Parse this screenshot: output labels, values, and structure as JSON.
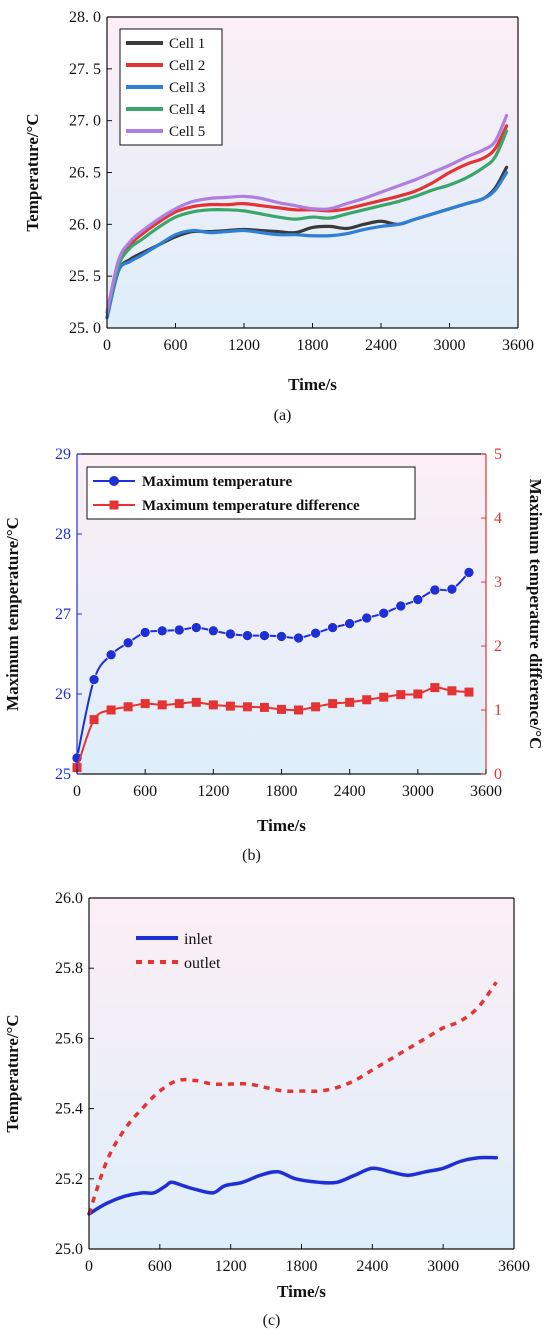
{
  "chart_data": [
    {
      "type": "line",
      "panel_label": "(a)",
      "xlabel": "Time/s",
      "ylabel": "Temperature/°C",
      "xlim": [
        0,
        3600
      ],
      "ylim": [
        25.0,
        28.0
      ],
      "x_ticks": [
        0,
        600,
        1200,
        1800,
        2400,
        3000,
        3600
      ],
      "x_tick_labels": [
        "0",
        "600",
        "1200",
        "1800",
        "2400",
        "3000",
        "3600"
      ],
      "y_ticks": [
        25.0,
        25.5,
        26.0,
        26.5,
        27.0,
        27.5,
        28.0
      ],
      "y_tick_labels": [
        "25. 0",
        "25. 5",
        "26. 0",
        "26. 5",
        "27. 0",
        "27. 5",
        "28. 0"
      ],
      "legend_position": "top-left",
      "background": {
        "top": "#fdeef5",
        "bottom": "#ddeefa"
      },
      "x": [
        0,
        100,
        200,
        300,
        450,
        600,
        750,
        900,
        1050,
        1200,
        1350,
        1500,
        1650,
        1800,
        1950,
        2100,
        2250,
        2400,
        2550,
        2700,
        2850,
        3000,
        3150,
        3300,
        3400,
        3500
      ],
      "series": [
        {
          "name": "Cell 1",
          "color": "#3a3a3a",
          "values": [
            25.1,
            25.55,
            25.66,
            25.72,
            25.8,
            25.88,
            25.93,
            25.93,
            25.94,
            25.95,
            25.94,
            25.93,
            25.92,
            25.97,
            25.98,
            25.96,
            26.0,
            26.03,
            26.0,
            26.05,
            26.1,
            26.15,
            26.2,
            26.25,
            26.35,
            26.55
          ]
        },
        {
          "name": "Cell 2",
          "color": "#e53333",
          "values": [
            25.15,
            25.62,
            25.8,
            25.9,
            26.02,
            26.12,
            26.17,
            26.19,
            26.19,
            26.2,
            26.18,
            26.16,
            26.14,
            26.14,
            26.13,
            26.15,
            26.19,
            26.23,
            26.27,
            26.32,
            26.4,
            26.5,
            26.58,
            26.64,
            26.73,
            26.95
          ]
        },
        {
          "name": "Cell 3",
          "color": "#2e7fd6",
          "values": [
            25.1,
            25.55,
            25.64,
            25.7,
            25.8,
            25.9,
            25.94,
            25.92,
            25.93,
            25.94,
            25.92,
            25.9,
            25.9,
            25.89,
            25.89,
            25.91,
            25.95,
            25.98,
            26.0,
            26.05,
            26.1,
            26.15,
            26.2,
            26.25,
            26.33,
            26.5
          ]
        },
        {
          "name": "Cell 4",
          "color": "#3aa66a",
          "values": [
            25.15,
            25.6,
            25.77,
            25.85,
            25.97,
            26.07,
            26.12,
            26.14,
            26.14,
            26.13,
            26.1,
            26.07,
            26.05,
            26.07,
            26.06,
            26.1,
            26.14,
            26.18,
            26.22,
            26.27,
            26.33,
            26.38,
            26.45,
            26.55,
            26.65,
            26.9
          ]
        },
        {
          "name": "Cell 5",
          "color": "#b07ee0",
          "values": [
            25.15,
            25.65,
            25.83,
            25.93,
            26.05,
            26.15,
            26.22,
            26.25,
            26.26,
            26.27,
            26.25,
            26.21,
            26.18,
            26.15,
            26.15,
            26.2,
            26.25,
            26.31,
            26.37,
            26.43,
            26.5,
            26.57,
            26.65,
            26.72,
            26.8,
            27.05
          ]
        }
      ]
    },
    {
      "type": "line",
      "panel_label": "(b)",
      "xlabel": "Time/s",
      "ylabel": "Maximum temperature/°C",
      "ylabel_right": "Maximum temperature difference/°C",
      "xlim": [
        0,
        3600
      ],
      "ylim": [
        25,
        29
      ],
      "ylim_right": [
        0,
        5
      ],
      "x_ticks": [
        0,
        600,
        1200,
        1800,
        2400,
        3000,
        3600
      ],
      "x_tick_labels": [
        "0",
        "600",
        "1200",
        "1800",
        "2400",
        "3000",
        "3600"
      ],
      "y_ticks": [
        25,
        26,
        27,
        28,
        29
      ],
      "y_tick_labels": [
        "25",
        "26",
        "27",
        "28",
        "29"
      ],
      "y_right_ticks": [
        0,
        1,
        2,
        3,
        4,
        5
      ],
      "y_right_tick_labels": [
        "0",
        "1",
        "2",
        "3",
        "4",
        "5"
      ],
      "legend_position": "top",
      "background": {
        "top": "#fdeef5",
        "bottom": "#ddeefa"
      },
      "x": [
        0,
        150,
        300,
        450,
        600,
        750,
        900,
        1050,
        1200,
        1350,
        1500,
        1650,
        1800,
        1950,
        2100,
        2250,
        2400,
        2550,
        2700,
        2850,
        3000,
        3150,
        3300,
        3450
      ],
      "series": [
        {
          "name": "Maximum temperature",
          "axis": "left",
          "marker": "circle",
          "color": "#1f2fd6",
          "values": [
            25.2,
            26.18,
            26.49,
            26.64,
            26.77,
            26.79,
            26.8,
            26.83,
            26.79,
            26.75,
            26.73,
            26.73,
            26.72,
            26.7,
            26.76,
            26.83,
            26.88,
            26.95,
            27.01,
            27.1,
            27.18,
            27.3,
            27.31,
            27.52
          ]
        },
        {
          "name": "Maximum temperature difference",
          "axis": "right",
          "marker": "square",
          "color": "#e53333",
          "values": [
            0.1,
            0.85,
            1.0,
            1.05,
            1.1,
            1.08,
            1.1,
            1.12,
            1.08,
            1.06,
            1.05,
            1.04,
            1.01,
            1.0,
            1.05,
            1.1,
            1.12,
            1.16,
            1.2,
            1.24,
            1.25,
            1.35,
            1.3,
            1.28
          ]
        }
      ]
    },
    {
      "type": "line",
      "panel_label": "(c)",
      "xlabel": "Time/s",
      "ylabel": "Temperature/°C",
      "xlim": [
        0,
        3600
      ],
      "ylim": [
        25.0,
        26.0
      ],
      "x_ticks": [
        0,
        600,
        1200,
        1800,
        2400,
        3000,
        3600
      ],
      "x_tick_labels": [
        "0",
        "600",
        "1200",
        "1800",
        "2400",
        "3000",
        "3600"
      ],
      "y_ticks": [
        25.0,
        25.2,
        25.4,
        25.6,
        25.8,
        26.0
      ],
      "y_tick_labels": [
        "25.0",
        "25.2",
        "25.4",
        "25.6",
        "25.8",
        "26.0"
      ],
      "legend_position": "top-left",
      "background": {
        "top": "#fdeef5",
        "bottom": "#ddeefa"
      },
      "series": [
        {
          "name": "inlet",
          "style": "solid",
          "color": "#1f2fd6",
          "x": [
            0,
            150,
            300,
            450,
            550,
            650,
            700,
            800,
            900,
            1050,
            1150,
            1300,
            1450,
            1600,
            1750,
            1950,
            2100,
            2250,
            2400,
            2550,
            2700,
            2850,
            3000,
            3150,
            3300,
            3450
          ],
          "values": [
            25.1,
            25.13,
            25.15,
            25.16,
            25.16,
            25.18,
            25.19,
            25.18,
            25.17,
            25.16,
            25.18,
            25.19,
            25.21,
            25.22,
            25.2,
            25.19,
            25.19,
            25.21,
            25.23,
            25.22,
            25.21,
            25.22,
            25.23,
            25.25,
            25.26,
            25.26
          ]
        },
        {
          "name": "outlet",
          "style": "dashed",
          "color": "#e53333",
          "x": [
            0,
            150,
            300,
            450,
            600,
            750,
            900,
            1050,
            1200,
            1350,
            1500,
            1650,
            1800,
            1950,
            2100,
            2250,
            2400,
            2550,
            2700,
            2850,
            3000,
            3150,
            3300,
            3450
          ],
          "values": [
            25.1,
            25.25,
            25.34,
            25.4,
            25.45,
            25.48,
            25.48,
            25.47,
            25.47,
            25.47,
            25.46,
            25.45,
            25.45,
            25.45,
            25.46,
            25.48,
            25.51,
            25.54,
            25.57,
            25.6,
            25.63,
            25.65,
            25.69,
            25.76
          ]
        }
      ]
    }
  ]
}
